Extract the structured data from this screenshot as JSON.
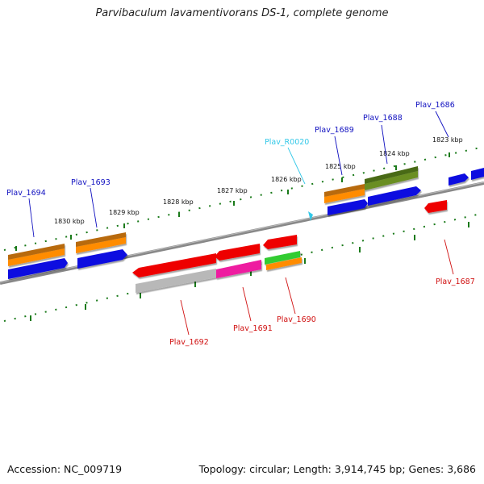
{
  "title": "Parvibaculum lavamentivorans DS-1, complete genome",
  "footer": {
    "accession": "Accession: NC_009719",
    "summary": "Topology: circular; Length: 3,914,745 bp; Genes: 3,686"
  },
  "colors": {
    "backbone": "#7a7a7a",
    "tick": "#1a7a1a",
    "forward_label": "#1010c0",
    "reverse_label": "#d01010",
    "rna_label": "#33c8e8"
  },
  "scale_labels": [
    "1823 kbp",
    "1824 kbp",
    "1825 kbp",
    "1826 kbp",
    "1827 kbp",
    "1828 kbp",
    "1829 kbp",
    "1830 kbp"
  ],
  "gene_labels": {
    "forward": [
      "Plav_1686",
      "Plav_1688",
      "Plav_1689",
      "Plav_1693",
      "Plav_1694"
    ],
    "rna": [
      "Plav_R0020"
    ],
    "reverse": [
      "Plav_1687",
      "Plav_1690",
      "Plav_1691",
      "Plav_1692"
    ]
  }
}
